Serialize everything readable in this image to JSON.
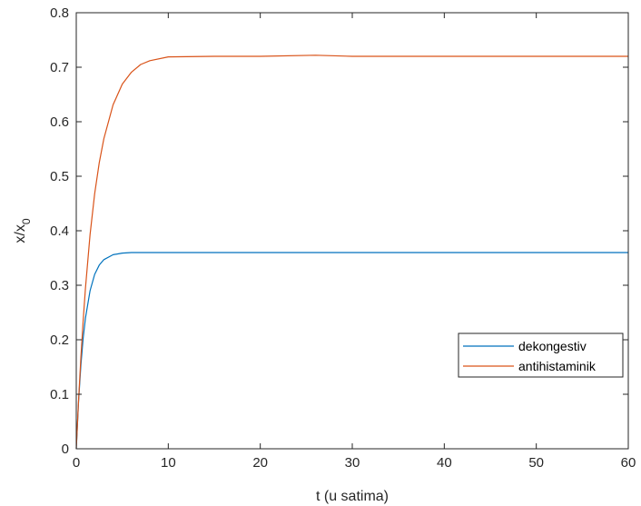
{
  "chart_data": {
    "type": "line",
    "xlabel": "t (u satima)",
    "ylabel_main": "x/x",
    "ylabel_sub": "0",
    "xlim": [
      0,
      60
    ],
    "ylim": [
      0,
      0.8
    ],
    "xticks": [
      0,
      10,
      20,
      30,
      40,
      50,
      60
    ],
    "xtick_labels": [
      "0",
      "10",
      "20",
      "30",
      "40",
      "50",
      "60"
    ],
    "yticks": [
      0,
      0.1,
      0.2,
      0.3,
      0.4,
      0.5,
      0.6,
      0.7,
      0.8
    ],
    "ytick_labels": [
      "0",
      "0.1",
      "0.2",
      "0.3",
      "0.4",
      "0.5",
      "0.6",
      "0.7",
      "0.8"
    ],
    "grid": false,
    "legend_position": "right",
    "series": [
      {
        "name": "dekongestiv",
        "color": "#0072BD",
        "x": [
          0,
          0.25,
          0.5,
          0.75,
          1,
          1.5,
          2,
          2.5,
          3,
          4,
          5,
          6,
          8,
          10,
          15,
          20,
          30,
          40,
          50,
          60
        ],
        "y": [
          0,
          0.087,
          0.153,
          0.203,
          0.24,
          0.29,
          0.32,
          0.337,
          0.347,
          0.356,
          0.359,
          0.36,
          0.36,
          0.36,
          0.36,
          0.36,
          0.36,
          0.36,
          0.36,
          0.36
        ]
      },
      {
        "name": "antihistaminik",
        "color": "#D95319",
        "x": [
          0,
          0.25,
          0.5,
          0.75,
          1,
          1.5,
          2,
          2.5,
          3,
          4,
          5,
          6,
          7,
          8,
          10,
          15,
          20,
          26,
          30,
          40,
          50,
          60
        ],
        "y": [
          0,
          0.089,
          0.167,
          0.235,
          0.295,
          0.393,
          0.468,
          0.525,
          0.569,
          0.631,
          0.669,
          0.691,
          0.705,
          0.712,
          0.719,
          0.72,
          0.72,
          0.722,
          0.72,
          0.72,
          0.72,
          0.72
        ]
      }
    ]
  }
}
